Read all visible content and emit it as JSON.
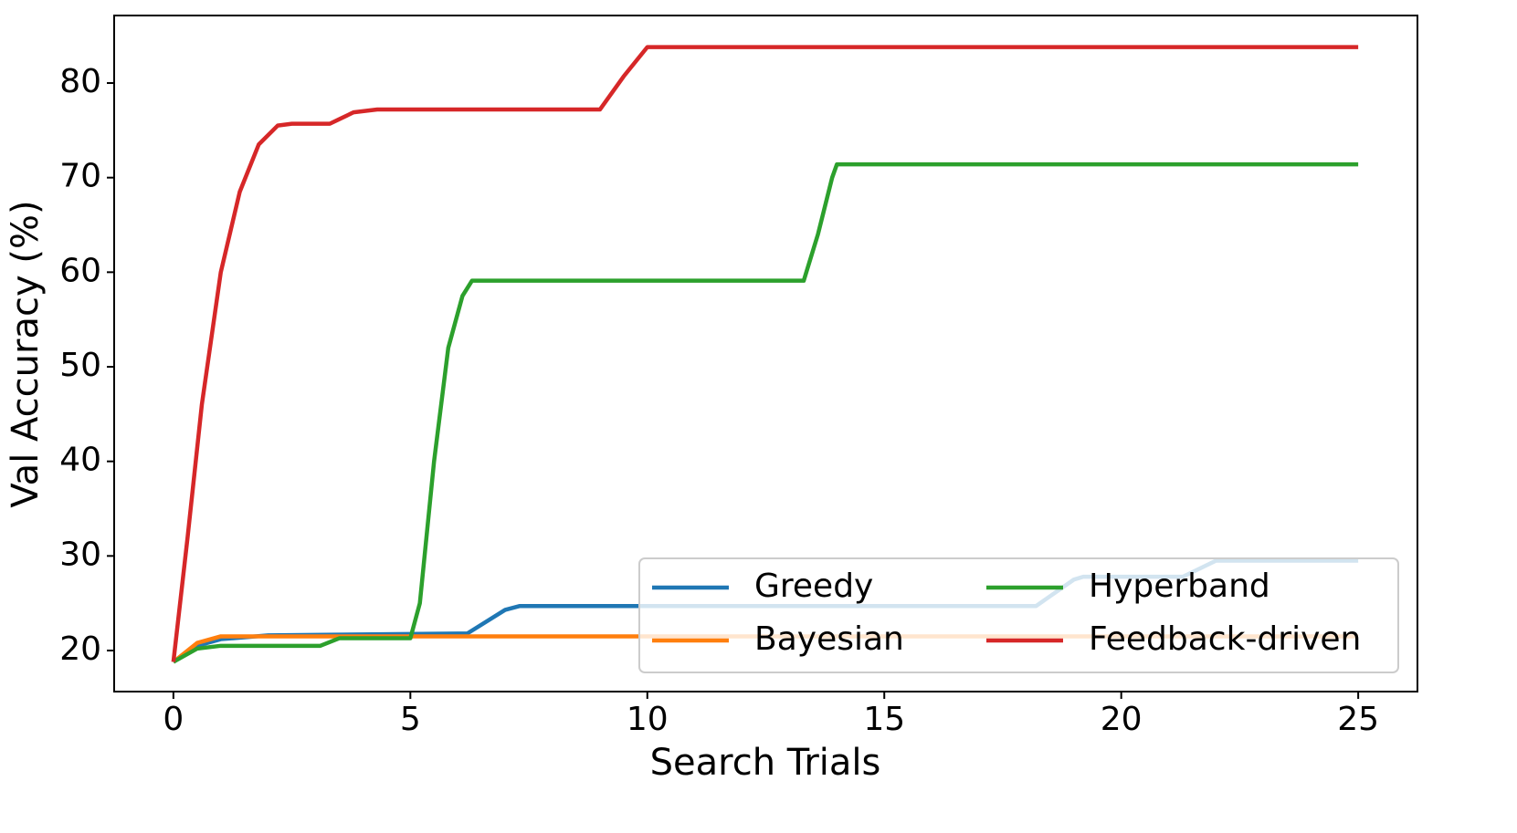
{
  "chart_data": {
    "type": "line",
    "x_label": "Search Trials",
    "y_label": "Val Accuracy (%)",
    "xlim": [
      -1.25,
      26.25
    ],
    "ylim": [
      15.66,
      87.14
    ],
    "xticks": [
      0,
      5,
      10,
      15,
      20,
      25
    ],
    "yticks": [
      20,
      30,
      40,
      50,
      60,
      70,
      80
    ],
    "grid": false,
    "legend": "lower right",
    "legend_columns": 2,
    "series": [
      {
        "name": "Greedy",
        "color": "#1f77b4",
        "x": [
          0,
          0.5,
          1,
          2,
          6,
          6.2,
          7,
          7.3,
          18.2,
          19,
          19.2,
          21.3,
          22,
          25
        ],
        "values": [
          18.8,
          20.5,
          21.2,
          21.6,
          21.8,
          21.8,
          24.3,
          24.7,
          24.7,
          27.5,
          27.8,
          27.8,
          29.5,
          29.5
        ]
      },
      {
        "name": "Bayesian",
        "color": "#ff7f0e",
        "x": [
          0,
          0.5,
          1,
          25
        ],
        "values": [
          18.8,
          20.8,
          21.5,
          21.5
        ]
      },
      {
        "name": "Hyperband",
        "color": "#2ca02c",
        "x": [
          0,
          0.5,
          1,
          3.1,
          3.5,
          5,
          5.2,
          5.5,
          5.8,
          6.1,
          6.3,
          13.3,
          13.6,
          13.9,
          14,
          25
        ],
        "values": [
          18.8,
          20.2,
          20.5,
          20.5,
          21.3,
          21.3,
          25,
          40,
          52,
          57.5,
          59.1,
          59.1,
          64,
          70,
          71.4,
          71.4
        ]
      },
      {
        "name": "Feedback-driven",
        "color": "#d62728",
        "x": [
          0,
          0.3,
          0.6,
          1,
          1.4,
          1.8,
          2.2,
          2.5,
          3.3,
          3.8,
          4.3,
          9,
          9.5,
          10,
          25
        ],
        "values": [
          18.8,
          32,
          46,
          60,
          68.5,
          73.5,
          75.5,
          75.7,
          75.7,
          76.9,
          77.2,
          77.2,
          80.7,
          83.8,
          83.8
        ]
      }
    ]
  }
}
